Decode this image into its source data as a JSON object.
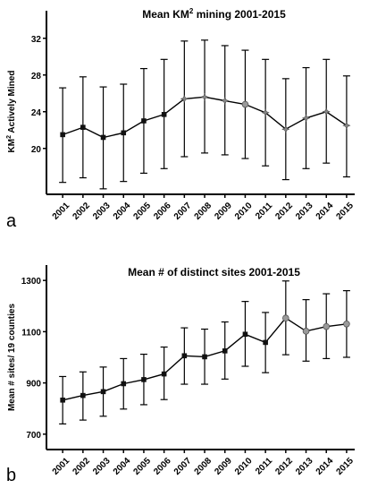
{
  "figure": {
    "panel_a_letter": "a",
    "panel_b_letter": "b"
  },
  "chart_data": [
    {
      "type": "line",
      "title_main": "Mean KM",
      "title_sup": "2",
      "title_rest": " mining 2001-2015",
      "ylabel_main": "KM",
      "ylabel_sup": "2",
      "ylabel_rest": " Actively Mined",
      "xlabel": "",
      "categories": [
        "2001",
        "2002",
        "2003",
        "2004",
        "2005",
        "2006",
        "2007",
        "2008",
        "2009",
        "2010",
        "2011",
        "2012",
        "2013",
        "2014",
        "2015"
      ],
      "series": [
        {
          "values": [
            21.5,
            22.3,
            21.2,
            21.7,
            23.0,
            23.7,
            25.4,
            25.6,
            25.2,
            24.8,
            23.9,
            22.1,
            23.3,
            24.0,
            22.5
          ],
          "err_low": [
            16.3,
            16.8,
            15.6,
            16.4,
            17.3,
            17.8,
            19.1,
            19.5,
            19.3,
            18.9,
            18.1,
            16.6,
            17.8,
            18.4,
            16.9
          ],
          "err_high": [
            26.6,
            27.8,
            26.7,
            27.0,
            28.7,
            29.7,
            31.7,
            31.8,
            31.2,
            30.7,
            29.7,
            27.6,
            28.8,
            29.7,
            27.9
          ]
        }
      ],
      "ylim": [
        15.0,
        35.0
      ],
      "yticks": [
        "20",
        "24",
        "28",
        "32"
      ],
      "ytick_values": [
        20,
        24,
        28,
        32
      ],
      "grid": false,
      "markers": [
        "square",
        "square",
        "square",
        "square",
        "square",
        "square",
        "star",
        "star",
        "star",
        "circle",
        "star",
        "star",
        "star",
        "star",
        "star"
      ]
    },
    {
      "type": "line",
      "title": "Mean # of distinct sites 2001-2015",
      "ylabel": "Mean # sites/ 19 counties",
      "xlabel": "",
      "categories": [
        "2001",
        "2002",
        "2003",
        "2004",
        "2005",
        "2006",
        "2007",
        "2008",
        "2009",
        "2010",
        "2011",
        "2012",
        "2013",
        "2014",
        "2015"
      ],
      "series": [
        {
          "values": [
            833,
            851,
            866,
            897,
            913,
            935,
            1006,
            1002,
            1025,
            1090,
            1058,
            1153,
            1102,
            1120,
            1130
          ],
          "err_low": [
            740,
            755,
            770,
            798,
            815,
            835,
            895,
            895,
            915,
            965,
            940,
            1010,
            985,
            995,
            1000
          ],
          "err_high": [
            925,
            943,
            962,
            995,
            1012,
            1040,
            1115,
            1110,
            1138,
            1218,
            1175,
            1298,
            1225,
            1248,
            1260
          ]
        }
      ],
      "ylim": [
        640,
        1360
      ],
      "yticks": [
        "700",
        "900",
        "1100",
        "1300"
      ],
      "ytick_values": [
        700,
        900,
        1100,
        1300
      ],
      "grid": false,
      "markers": [
        "square",
        "square",
        "square",
        "square",
        "square",
        "square",
        "square",
        "square",
        "square",
        "square",
        "square",
        "circle",
        "circle",
        "circle",
        "circle"
      ]
    }
  ]
}
